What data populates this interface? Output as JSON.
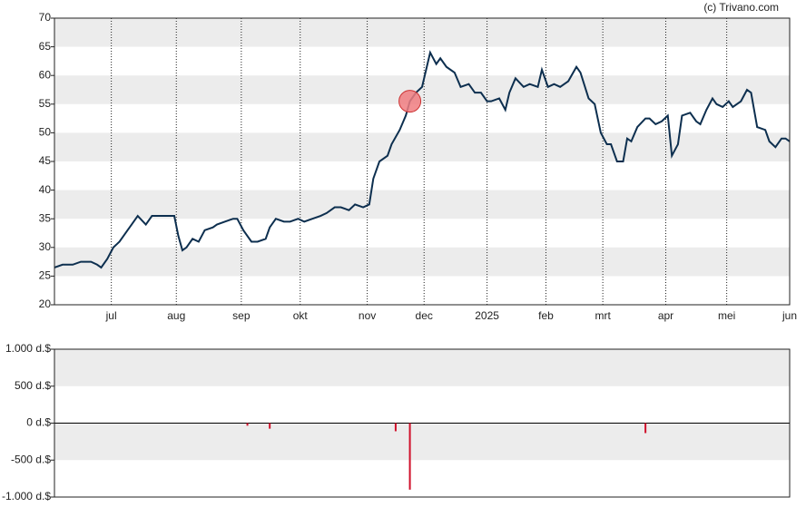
{
  "source": "(c) Trivano.com",
  "chart_data": [
    {
      "type": "line",
      "xlim": [
        0,
        362
      ],
      "xticks": [
        {
          "value": 28,
          "label": "jul"
        },
        {
          "value": 60,
          "label": "aug"
        },
        {
          "value": 92,
          "label": "sep"
        },
        {
          "value": 121,
          "label": "okt"
        },
        {
          "value": 154,
          "label": "nov"
        },
        {
          "value": 182,
          "label": "dec"
        },
        {
          "value": 213,
          "label": "2025"
        },
        {
          "value": 242,
          "label": "feb"
        },
        {
          "value": 270,
          "label": "mrt"
        },
        {
          "value": 301,
          "label": "apr"
        },
        {
          "value": 331,
          "label": "mei"
        },
        {
          "value": 362,
          "label": "jun"
        }
      ],
      "ylim": [
        20,
        70
      ],
      "yticks": [
        20,
        25,
        30,
        35,
        40,
        45,
        50,
        55,
        60,
        65,
        70
      ],
      "grid": true,
      "series": [
        {
          "color": "#0d2f4f",
          "x": [
            0,
            4,
            9,
            13,
            18,
            21,
            23,
            26,
            29,
            32,
            36,
            38,
            41,
            45,
            48,
            52,
            55,
            59,
            61,
            63,
            65,
            68,
            71,
            74,
            78,
            80,
            84,
            88,
            90,
            93,
            97,
            100,
            104,
            106,
            109,
            113,
            116,
            120,
            123,
            127,
            131,
            134,
            138,
            141,
            145,
            148,
            152,
            155,
            157,
            160,
            164,
            166,
            170,
            173,
            175,
            178,
            181,
            183,
            185,
            188,
            190,
            193,
            197,
            200,
            204,
            207,
            210,
            213,
            215,
            219,
            222,
            224,
            227,
            231,
            234,
            238,
            240,
            243,
            246,
            249,
            253,
            257,
            259,
            263,
            266,
            269,
            272,
            274,
            277,
            280,
            282,
            284,
            287,
            291,
            293,
            296,
            299,
            302,
            304,
            307,
            309,
            313,
            316,
            318,
            321,
            324,
            326,
            329,
            332,
            334,
            338,
            341,
            343,
            346,
            350,
            352,
            355,
            358,
            360,
            362
          ],
          "values": [
            26.5,
            27,
            27,
            27.5,
            27.5,
            27,
            26.5,
            28,
            30,
            31,
            33,
            34,
            35.5,
            34,
            35.5,
            35.5,
            35.5,
            35.5,
            32,
            29.5,
            30,
            31.5,
            31,
            33,
            33.5,
            34,
            34.5,
            35,
            35,
            33,
            31,
            31,
            31.5,
            33.5,
            35,
            34.5,
            34.5,
            35,
            34.5,
            35,
            35.5,
            36,
            37,
            37,
            36.5,
            37.5,
            37,
            37.5,
            42,
            45,
            46,
            48,
            50.5,
            53,
            55.5,
            57,
            58,
            61,
            64,
            62,
            63,
            61.5,
            60.5,
            58,
            58.5,
            57,
            57,
            55.5,
            55.5,
            56,
            54,
            57,
            59.5,
            58,
            58.5,
            58,
            61,
            58,
            58.5,
            58,
            59,
            61.5,
            60.5,
            56,
            55,
            50,
            48,
            48,
            45,
            45,
            49,
            48.5,
            51,
            52.5,
            52.5,
            51.5,
            52,
            53,
            46,
            48,
            53,
            53.5,
            52,
            51.5,
            54,
            56,
            55,
            54.5,
            55.5,
            54.5,
            55.5,
            57.5,
            57,
            51,
            50.5,
            48.5,
            47.5,
            49,
            49,
            48.5
          ]
        }
      ],
      "marker": {
        "x": 175,
        "y": 55.5,
        "color": "#f07c80"
      }
    },
    {
      "type": "bar",
      "xlim": [
        0,
        362
      ],
      "ylim": [
        -1000,
        1000
      ],
      "yticks": [
        {
          "value": 1000,
          "label": "1.000 d.$"
        },
        {
          "value": 500,
          "label": "500 d.$"
        },
        {
          "value": 0,
          "label": "0 d.$"
        },
        {
          "value": -500,
          "label": "-500 d.$"
        },
        {
          "value": -1000,
          "label": "-1.000 d.$"
        }
      ],
      "grid": true,
      "color": "#d0102a",
      "x": [
        95,
        106,
        168,
        175,
        291
      ],
      "values": [
        -35,
        -75,
        -110,
        -900,
        -135
      ]
    }
  ]
}
